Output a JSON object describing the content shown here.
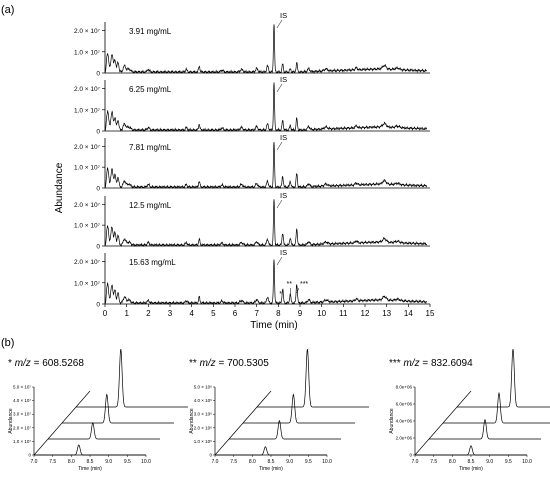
{
  "panel_a": {
    "label": "(a)",
    "ylabel": "Abundance",
    "xlabel": "Time (min)",
    "xticks": [
      "0",
      "1",
      "2",
      "3",
      "4",
      "5",
      "6",
      "7",
      "8",
      "9",
      "10",
      "11",
      "12",
      "13",
      "14",
      "15"
    ],
    "yticks": [
      "0",
      "1.0 × 10⁷",
      "2.0 × 10⁷"
    ],
    "is_label": "IS",
    "traces": [
      {
        "conc": "3.91 mg/mL"
      },
      {
        "conc": "6.25 mg/mL"
      },
      {
        "conc": "7.81 mg/mL"
      },
      {
        "conc": "12.5 mg/mL"
      },
      {
        "conc": "15.63 mg/mL"
      }
    ],
    "peak_marks": [
      "*",
      "**",
      "***"
    ]
  },
  "panel_b": {
    "label": "(b)",
    "insets": [
      {
        "stars": "*",
        "mz_label": "m/z",
        "mz_value": " = 608.5268",
        "yticks": [
          "0",
          "1.0 × 10⁷",
          "2.0 × 10⁷",
          "3.0 × 10⁷",
          "4.0 × 10⁷",
          "5.0 × 10⁷"
        ],
        "xticks": [
          "7.0",
          "7.5",
          "8.0",
          "8.5",
          "9.0",
          "9.5",
          "10.0"
        ],
        "ylabel": "Abundance",
        "xlabel": "Time (min)",
        "peak_rt": 8.2,
        "peak_heights": [
          0.22,
          0.35,
          0.62,
          1.0
        ]
      },
      {
        "stars": "**",
        "mz_label": "m/z",
        "mz_value": " = 700.5305",
        "yticks": [
          "0",
          "1.0 × 10⁶",
          "2.0 × 10⁶",
          "3.0 × 10⁶",
          "4.0 × 10⁶",
          "5.0 × 10⁶"
        ],
        "xticks": [
          "7.0",
          "7.5",
          "8.0",
          "8.5",
          "9.0",
          "9.5",
          "10.0"
        ],
        "ylabel": "Abundance",
        "xlabel": "Time (min)",
        "peak_rt": 8.35,
        "peak_heights": [
          0.18,
          0.4,
          0.62,
          1.0
        ]
      },
      {
        "stars": "***",
        "mz_label": "m/z",
        "mz_value": " = 832.6094",
        "yticks": [
          "0",
          "2.0e+06",
          "4.0e+06",
          "6.0e+06",
          "8.0e+06"
        ],
        "xticks": [
          "7.0",
          "7.5",
          "8.0",
          "8.5",
          "9.0",
          "9.5",
          "10.0"
        ],
        "ylabel": "Abundance",
        "xlabel": "Time (min)",
        "peak_rt": 8.5,
        "peak_heights": [
          0.2,
          0.42,
          0.65,
          1.0
        ]
      }
    ]
  },
  "chart_data": [
    {
      "type": "line",
      "xlabel": "Time (min)",
      "ylabel": "Abundance",
      "xlim": [
        0,
        15
      ],
      "ylim": [
        0,
        24000000.0
      ],
      "series": [
        {
          "name": "3.91 mg/mL",
          "peaks": [
            [
              0.3,
              9000000.0
            ],
            [
              0.55,
              5500000.0
            ],
            [
              7.8,
              23000000.0
            ],
            [
              8.2,
              4500000.0
            ],
            [
              8.85,
              3500000.0
            ],
            [
              9.4,
              1000000.0
            ]
          ]
        },
        {
          "name": "6.25 mg/mL",
          "peaks": [
            [
              0.3,
              8500000.0
            ],
            [
              0.55,
              5000000.0
            ],
            [
              7.8,
              22000000.0
            ],
            [
              8.2,
              5000000.0
            ],
            [
              8.85,
              5000000.0
            ],
            [
              9.4,
              1200000.0
            ]
          ]
        },
        {
          "name": "7.81 mg/mL",
          "peaks": [
            [
              0.3,
              7500000.0
            ],
            [
              0.55,
              5000000.0
            ],
            [
              7.8,
              21000000.0
            ],
            [
              8.2,
              5000000.0
            ],
            [
              8.85,
              5000000.0
            ],
            [
              9.4,
              1500000.0
            ]
          ]
        },
        {
          "name": "12.5 mg/mL",
          "peaks": [
            [
              0.3,
              7000000.0
            ],
            [
              0.55,
              5500000.0
            ],
            [
              7.8,
              22000000.0
            ],
            [
              8.2,
              5500000.0
            ],
            [
              8.55,
              3000000.0
            ],
            [
              8.85,
              6500000.0
            ]
          ]
        },
        {
          "name": "15.63 mg/mL",
          "peaks": [
            [
              0.3,
              7500000.0
            ],
            [
              0.55,
              6000000.0
            ],
            [
              7.8,
              18500000.0
            ],
            [
              8.2,
              6500000.0
            ],
            [
              8.55,
              4500000.0
            ],
            [
              8.85,
              7000000.0
            ]
          ]
        }
      ]
    }
  ]
}
